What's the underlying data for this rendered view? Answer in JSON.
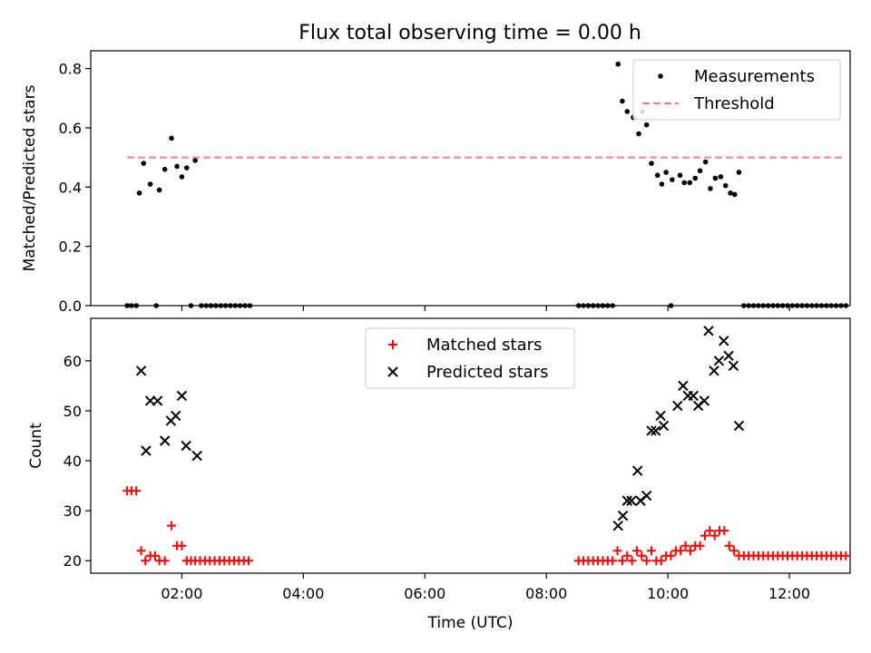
{
  "title": "Flux total observing time = 0.00 h",
  "chart_data": [
    {
      "type": "scatter",
      "ylabel": "Matched/Predicted stars",
      "xlabel": "",
      "xlim": [
        0.5,
        13.0
      ],
      "ylim": [
        0,
        0.86
      ],
      "yticks": [
        0.0,
        0.2,
        0.4,
        0.6,
        0.8
      ],
      "ytick_labels": [
        "0.0",
        "0.2",
        "0.4",
        "0.6",
        "0.8"
      ],
      "legend_placement": "top-right",
      "series": [
        {
          "name": "Measurements",
          "marker": "dot",
          "color": "#000000",
          "points": [
            [
              1.3,
              0.38
            ],
            [
              1.37,
              0.48
            ],
            [
              1.48,
              0.41
            ],
            [
              1.63,
              0.39
            ],
            [
              1.72,
              0.46
            ],
            [
              1.83,
              0.565
            ],
            [
              1.92,
              0.47
            ],
            [
              2.0,
              0.435
            ],
            [
              2.08,
              0.465
            ],
            [
              2.22,
              0.49
            ],
            [
              9.18,
              0.815
            ],
            [
              9.25,
              0.69
            ],
            [
              9.33,
              0.655
            ],
            [
              9.43,
              0.635
            ],
            [
              9.52,
              0.58
            ],
            [
              9.58,
              0.655
            ],
            [
              9.65,
              0.61
            ],
            [
              9.73,
              0.48
            ],
            [
              9.83,
              0.44
            ],
            [
              9.9,
              0.41
            ],
            [
              9.97,
              0.45
            ],
            [
              10.07,
              0.425
            ],
            [
              10.2,
              0.44
            ],
            [
              10.27,
              0.415
            ],
            [
              10.36,
              0.415
            ],
            [
              10.45,
              0.43
            ],
            [
              10.53,
              0.455
            ],
            [
              10.62,
              0.485
            ],
            [
              10.7,
              0.395
            ],
            [
              10.78,
              0.43
            ],
            [
              10.87,
              0.435
            ],
            [
              10.95,
              0.405
            ],
            [
              11.03,
              0.38
            ],
            [
              11.1,
              0.375
            ],
            [
              11.17,
              0.45
            ],
            [
              1.1,
              0
            ],
            [
              1.17,
              0
            ],
            [
              1.25,
              0
            ],
            [
              1.58,
              0
            ],
            [
              2.15,
              0
            ],
            [
              2.32,
              0
            ],
            [
              2.4,
              0
            ],
            [
              2.48,
              0
            ],
            [
              2.56,
              0
            ],
            [
              2.64,
              0
            ],
            [
              2.72,
              0
            ],
            [
              2.8,
              0
            ],
            [
              2.88,
              0
            ],
            [
              2.96,
              0
            ],
            [
              3.04,
              0
            ],
            [
              3.12,
              0
            ],
            [
              8.53,
              0
            ],
            [
              8.61,
              0
            ],
            [
              8.69,
              0
            ],
            [
              8.77,
              0
            ],
            [
              8.85,
              0
            ],
            [
              8.93,
              0
            ],
            [
              9.01,
              0
            ],
            [
              9.09,
              0
            ],
            [
              10.05,
              0
            ],
            [
              11.25,
              0
            ],
            [
              11.33,
              0
            ],
            [
              11.41,
              0
            ],
            [
              11.49,
              0
            ],
            [
              11.57,
              0
            ],
            [
              11.65,
              0
            ],
            [
              11.73,
              0
            ],
            [
              11.81,
              0
            ],
            [
              11.89,
              0
            ],
            [
              11.97,
              0
            ],
            [
              12.05,
              0
            ],
            [
              12.13,
              0
            ],
            [
              12.21,
              0
            ],
            [
              12.29,
              0
            ],
            [
              12.37,
              0
            ],
            [
              12.45,
              0
            ],
            [
              12.53,
              0
            ],
            [
              12.61,
              0
            ],
            [
              12.69,
              0
            ],
            [
              12.77,
              0
            ],
            [
              12.85,
              0
            ],
            [
              12.93,
              0
            ]
          ]
        },
        {
          "name": "Threshold",
          "marker": "dashed-line",
          "color": "#ff7f7f",
          "points": [
            [
              1.1,
              0.5
            ],
            [
              12.9,
              0.5
            ]
          ]
        }
      ]
    },
    {
      "type": "scatter",
      "ylabel": "Count",
      "xlabel": "Time (UTC)",
      "xlim": [
        0.5,
        13.0
      ],
      "ylim": [
        17.5,
        68.5
      ],
      "yticks": [
        20,
        30,
        40,
        50,
        60
      ],
      "ytick_labels": [
        "20",
        "30",
        "40",
        "50",
        "60"
      ],
      "xticks": [
        2,
        4,
        6,
        8,
        10,
        12
      ],
      "xtick_labels": [
        "02:00",
        "04:00",
        "06:00",
        "08:00",
        "10:00",
        "12:00"
      ],
      "legend_placement": "top-center",
      "series": [
        {
          "name": "Matched stars",
          "marker": "plus",
          "color": "#ff0000",
          "points": [
            [
              1.1,
              34
            ],
            [
              1.17,
              34
            ],
            [
              1.25,
              34
            ],
            [
              1.33,
              22
            ],
            [
              1.4,
              20
            ],
            [
              1.48,
              21
            ],
            [
              1.56,
              21
            ],
            [
              1.63,
              20
            ],
            [
              1.72,
              20
            ],
            [
              1.83,
              27
            ],
            [
              1.92,
              23
            ],
            [
              2.0,
              23
            ],
            [
              2.08,
              20
            ],
            [
              2.15,
              20
            ],
            [
              2.22,
              20
            ],
            [
              2.3,
              20
            ],
            [
              2.38,
              20
            ],
            [
              2.46,
              20
            ],
            [
              2.54,
              20
            ],
            [
              2.62,
              20
            ],
            [
              2.7,
              20
            ],
            [
              2.78,
              20
            ],
            [
              2.86,
              20
            ],
            [
              2.94,
              20
            ],
            [
              3.02,
              20
            ],
            [
              3.1,
              20
            ],
            [
              8.53,
              20
            ],
            [
              8.61,
              20
            ],
            [
              8.69,
              20
            ],
            [
              8.77,
              20
            ],
            [
              8.85,
              20
            ],
            [
              8.93,
              20
            ],
            [
              9.01,
              20
            ],
            [
              9.09,
              20
            ],
            [
              9.17,
              22
            ],
            [
              9.25,
              20
            ],
            [
              9.33,
              21
            ],
            [
              9.41,
              20
            ],
            [
              9.49,
              22
            ],
            [
              9.57,
              21
            ],
            [
              9.65,
              20
            ],
            [
              9.73,
              22
            ],
            [
              9.81,
              20
            ],
            [
              9.89,
              20
            ],
            [
              9.97,
              21
            ],
            [
              10.05,
              21
            ],
            [
              10.13,
              22
            ],
            [
              10.21,
              22
            ],
            [
              10.29,
              23
            ],
            [
              10.37,
              22
            ],
            [
              10.45,
              23
            ],
            [
              10.53,
              23
            ],
            [
              10.61,
              25
            ],
            [
              10.69,
              26
            ],
            [
              10.77,
              25
            ],
            [
              10.85,
              26
            ],
            [
              10.93,
              26
            ],
            [
              11.01,
              23
            ],
            [
              11.09,
              22
            ],
            [
              11.17,
              21
            ],
            [
              11.25,
              21
            ],
            [
              11.33,
              21
            ],
            [
              11.41,
              21
            ],
            [
              11.49,
              21
            ],
            [
              11.57,
              21
            ],
            [
              11.65,
              21
            ],
            [
              11.73,
              21
            ],
            [
              11.81,
              21
            ],
            [
              11.89,
              21
            ],
            [
              11.97,
              21
            ],
            [
              12.05,
              21
            ],
            [
              12.13,
              21
            ],
            [
              12.21,
              21
            ],
            [
              12.29,
              21
            ],
            [
              12.37,
              21
            ],
            [
              12.45,
              21
            ],
            [
              12.53,
              21
            ],
            [
              12.61,
              21
            ],
            [
              12.69,
              21
            ],
            [
              12.77,
              21
            ],
            [
              12.85,
              21
            ],
            [
              12.93,
              21
            ]
          ]
        },
        {
          "name": "Predicted stars",
          "marker": "x",
          "color": "#000000",
          "points": [
            [
              1.33,
              58
            ],
            [
              1.41,
              42
            ],
            [
              1.48,
              52
            ],
            [
              1.6,
              52
            ],
            [
              1.72,
              44
            ],
            [
              1.82,
              48
            ],
            [
              1.9,
              49
            ],
            [
              2.0,
              53
            ],
            [
              2.07,
              43
            ],
            [
              2.25,
              41
            ],
            [
              9.18,
              27
            ],
            [
              9.26,
              29
            ],
            [
              9.33,
              32
            ],
            [
              9.4,
              32
            ],
            [
              9.5,
              38
            ],
            [
              9.55,
              32
            ],
            [
              9.65,
              33
            ],
            [
              9.73,
              46
            ],
            [
              9.8,
              46
            ],
            [
              9.88,
              49
            ],
            [
              9.93,
              47
            ],
            [
              10.16,
              51
            ],
            [
              10.25,
              55
            ],
            [
              10.33,
              53
            ],
            [
              10.42,
              53
            ],
            [
              10.5,
              51
            ],
            [
              10.6,
              52
            ],
            [
              10.67,
              66
            ],
            [
              10.76,
              58
            ],
            [
              10.84,
              60
            ],
            [
              10.92,
              64
            ],
            [
              11.0,
              61
            ],
            [
              11.08,
              59
            ],
            [
              11.17,
              47
            ]
          ]
        }
      ]
    }
  ]
}
